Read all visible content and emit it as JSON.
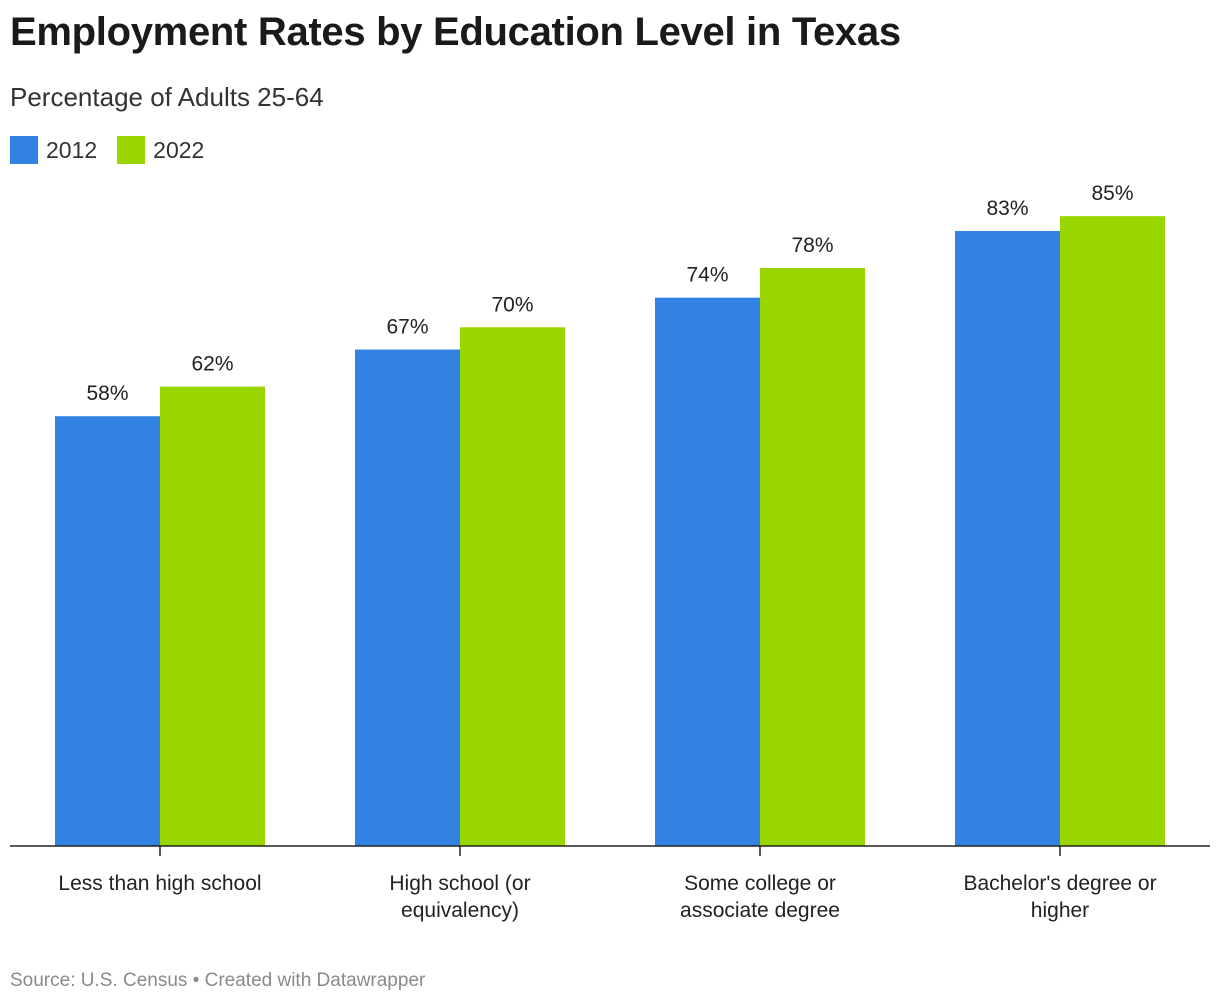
{
  "chart_data": {
    "type": "bar",
    "title": "Employment Rates by Education Level in Texas",
    "subtitle": "Percentage of Adults 25-64",
    "categories": [
      [
        "Less than high school"
      ],
      [
        "High school (or",
        "equivalency)"
      ],
      [
        "Some college or",
        "associate degree"
      ],
      [
        "Bachelor's degree or",
        "higher"
      ]
    ],
    "series": [
      {
        "name": "2012",
        "color": "#3182e2",
        "values": [
          58,
          67,
          74,
          83
        ]
      },
      {
        "name": "2022",
        "color": "#99d600",
        "values": [
          62,
          70,
          78,
          85
        ]
      }
    ],
    "value_suffix": "%",
    "ylim": [
      0,
      100
    ],
    "grid": false,
    "legend": "top-left",
    "source": "Source: U.S. Census • Created with Datawrapper"
  }
}
